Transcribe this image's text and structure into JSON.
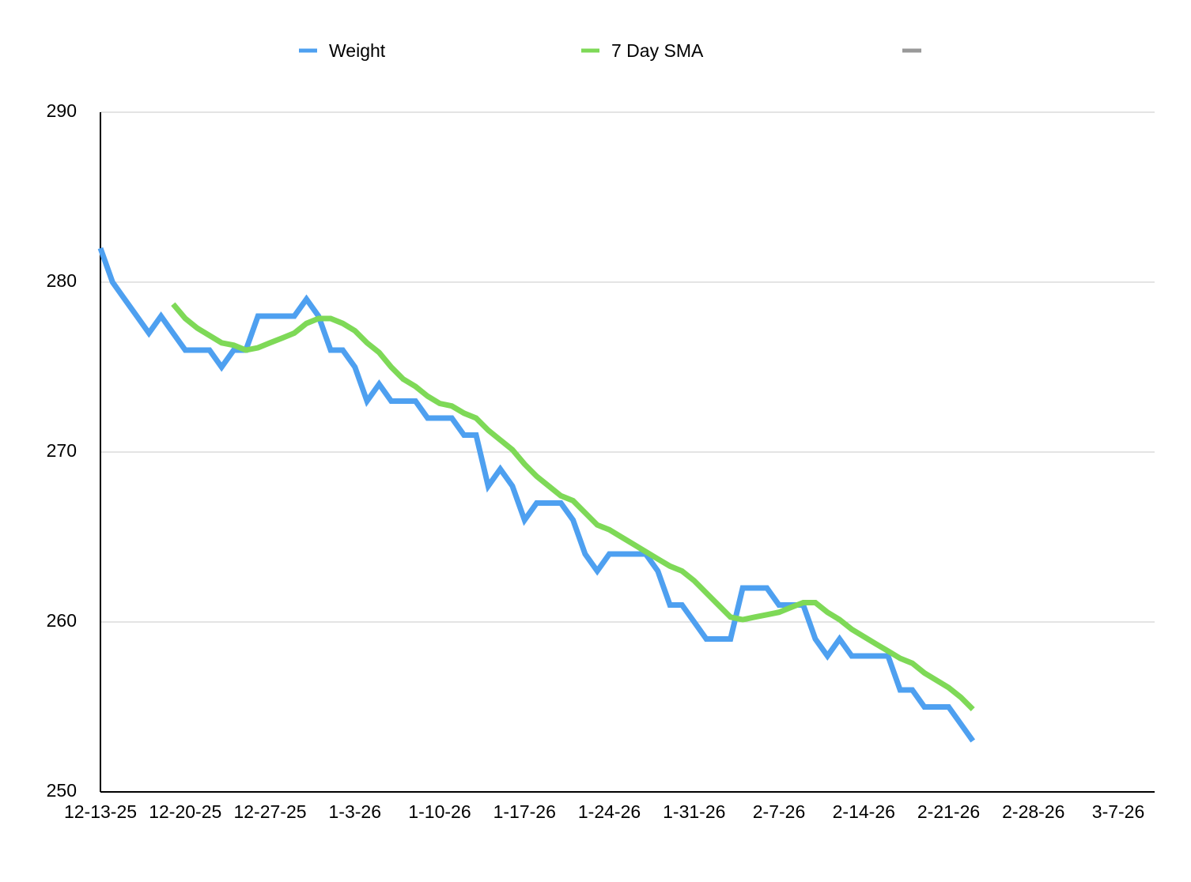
{
  "chart_data": {
    "type": "line",
    "x": [
      "12-13-25",
      "12-14-25",
      "12-15-25",
      "12-16-25",
      "12-17-25",
      "12-18-25",
      "12-19-25",
      "12-20-25",
      "12-21-25",
      "12-22-25",
      "12-23-25",
      "12-24-25",
      "12-25-25",
      "12-26-25",
      "12-27-25",
      "12-28-25",
      "12-29-25",
      "12-30-25",
      "12-31-25",
      "1-1-26",
      "1-2-26",
      "1-3-26",
      "1-4-26",
      "1-5-26",
      "1-6-26",
      "1-7-26",
      "1-8-26",
      "1-9-26",
      "1-10-26",
      "1-11-26",
      "1-12-26",
      "1-13-26",
      "1-14-26",
      "1-15-26",
      "1-16-26",
      "1-17-26",
      "1-18-26",
      "1-19-26",
      "1-20-26",
      "1-21-26",
      "1-22-26",
      "1-23-26",
      "1-24-26",
      "1-25-26",
      "1-26-26",
      "1-27-26",
      "1-28-26",
      "1-29-26",
      "1-30-26",
      "1-31-26",
      "2-1-26",
      "2-2-26",
      "2-3-26",
      "2-4-26",
      "2-5-26",
      "2-6-26",
      "2-7-26",
      "2-8-26",
      "2-9-26",
      "2-10-26",
      "2-11-26",
      "2-12-26",
      "2-13-26",
      "2-14-26",
      "2-15-26",
      "2-16-26",
      "2-17-26",
      "2-18-26",
      "2-19-26",
      "2-20-26",
      "2-21-26",
      "2-22-26",
      "2-23-26"
    ],
    "series": [
      {
        "name": "Weight",
        "color": "#4ea0f0",
        "values": [
          282,
          280,
          279,
          278,
          277,
          278,
          277,
          276,
          276,
          276,
          275,
          276,
          276,
          278,
          278,
          278,
          278,
          279,
          278,
          276,
          276,
          275,
          273,
          274,
          273,
          273,
          273,
          272,
          272,
          272,
          271,
          271,
          268,
          269,
          268,
          266,
          267,
          267,
          267,
          266,
          264,
          263,
          264,
          264,
          264,
          264,
          263,
          261,
          261,
          260,
          259,
          259,
          259,
          262,
          262,
          262,
          261,
          261,
          261,
          259,
          258,
          259,
          258,
          258,
          258,
          258,
          256,
          256,
          255,
          255,
          255,
          254,
          253
        ]
      },
      {
        "name": "7 Day SMA",
        "color": "#7ed957",
        "values": [
          null,
          null,
          null,
          null,
          null,
          null,
          278.71,
          277.86,
          277.29,
          276.86,
          276.43,
          276.29,
          276.0,
          276.14,
          276.43,
          276.71,
          277.0,
          277.57,
          277.86,
          277.86,
          277.57,
          277.14,
          276.43,
          275.86,
          275.0,
          274.29,
          273.86,
          273.29,
          272.86,
          272.71,
          272.29,
          272.0,
          271.29,
          270.71,
          270.14,
          269.29,
          268.57,
          268.0,
          267.43,
          267.14,
          266.43,
          265.71,
          265.43,
          265.0,
          264.57,
          264.14,
          263.71,
          263.29,
          263.0,
          262.43,
          261.71,
          261.0,
          260.29,
          260.14,
          260.29,
          260.43,
          260.57,
          260.86,
          261.14,
          261.14,
          260.57,
          260.14,
          259.57,
          259.14,
          258.71,
          258.29,
          257.86,
          257.57,
          257.0,
          256.57,
          256.14,
          255.57,
          254.86
        ]
      }
    ],
    "xlim": [
      "12-13-25",
      "3-10-26"
    ],
    "xticks": [
      "12-13-25",
      "12-20-25",
      "12-27-25",
      "1-3-26",
      "1-10-26",
      "1-17-26",
      "1-24-26",
      "1-31-26",
      "2-7-26",
      "2-14-26",
      "2-21-26",
      "2-28-26",
      "3-7-26"
    ],
    "ylim": [
      250,
      290
    ],
    "yticks": [
      250,
      260,
      270,
      280,
      290
    ],
    "grid": true,
    "legend": "top"
  }
}
